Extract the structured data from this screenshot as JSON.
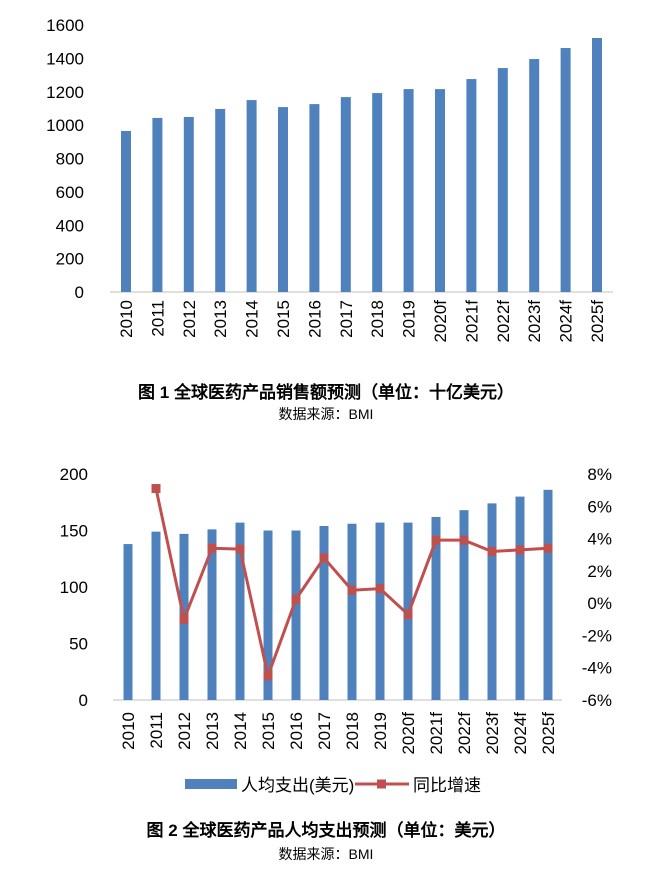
{
  "chart_data": [
    {
      "type": "bar",
      "title": "图 1 全球医药产品销售额预测（单位：十亿美元）",
      "source": "数据来源：BMI",
      "categories": [
        "2010",
        "2011",
        "2012",
        "2013",
        "2014",
        "2015",
        "2016",
        "2017",
        "2018",
        "2019",
        "2020f",
        "2021f",
        "2022f",
        "2023f",
        "2024f",
        "2025f"
      ],
      "values": [
        965,
        1043,
        1049,
        1097,
        1150,
        1108,
        1126,
        1168,
        1192,
        1216,
        1216,
        1276,
        1342,
        1396,
        1462,
        1522
      ],
      "ylim": [
        0,
        1600
      ],
      "yticks": [
        "0",
        "200",
        "400",
        "600",
        "800",
        "1000",
        "1200",
        "1400",
        "1600"
      ],
      "grid": false,
      "color": "#4f81bd"
    },
    {
      "type": "bar+line",
      "title": "图 2 全球医药产品人均支出预测（单位：美元）",
      "source": "数据来源：BMI",
      "categories": [
        "2010",
        "2011",
        "2012",
        "2013",
        "2014",
        "2015",
        "2016",
        "2017",
        "2018",
        "2019",
        "2020f",
        "2021f",
        "2022f",
        "2023f",
        "2024f",
        "2025f"
      ],
      "series": [
        {
          "name": "人均支出(美元)",
          "type": "bar",
          "axis": "left",
          "color": "#4f81bd",
          "values": [
            138,
            149,
            147,
            151,
            157,
            150,
            150,
            154,
            156,
            157,
            157,
            162,
            168,
            174,
            180,
            186
          ]
        },
        {
          "name": "同比增速",
          "type": "line",
          "axis": "right",
          "color": "#c0504d",
          "values": [
            null,
            7.1,
            -1.0,
            3.4,
            3.35,
            -4.5,
            0.25,
            2.8,
            0.8,
            0.9,
            -0.7,
            3.9,
            3.9,
            3.2,
            3.3,
            3.4
          ]
        }
      ],
      "ylim": [
        0,
        200
      ],
      "yticks": [
        "0",
        "50",
        "100",
        "150",
        "200"
      ],
      "y2lim": [
        -6,
        8
      ],
      "y2ticks": [
        "-6%",
        "-4%",
        "-2%",
        "0%",
        "2%",
        "4%",
        "6%",
        "8%"
      ],
      "legend": "bottom",
      "grid": false
    }
  ]
}
